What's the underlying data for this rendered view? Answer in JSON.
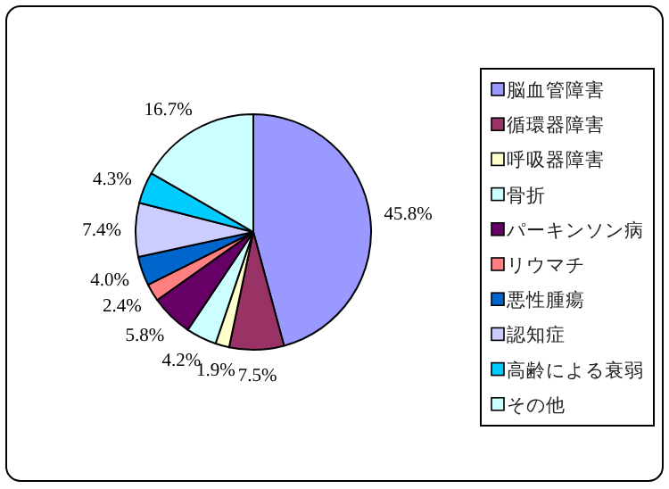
{
  "chart_data": {
    "type": "pie",
    "categories": [
      "脳血管障害",
      "循環器障害",
      "呼吸器障害",
      "骨折",
      "パーキンソン病",
      "リウマチ",
      "悪性腫瘍",
      "認知症",
      "高齢による衰弱",
      "その他"
    ],
    "values": [
      45.8,
      7.5,
      1.9,
      4.2,
      5.8,
      2.4,
      4.0,
      7.4,
      4.3,
      16.7
    ],
    "colors": [
      "#9999ff",
      "#993366",
      "#ffffcc",
      "#ccffff",
      "#660066",
      "#ff8080",
      "#0066cc",
      "#ccccff",
      "#00ccff",
      "#ccffff"
    ],
    "value_labels": [
      "45.8%",
      "7.5%",
      "1.9%",
      "4.2%",
      "5.8%",
      "2.4%",
      "4.0%",
      "7.4%",
      "4.3%",
      "16.7%"
    ],
    "legend": "right"
  }
}
